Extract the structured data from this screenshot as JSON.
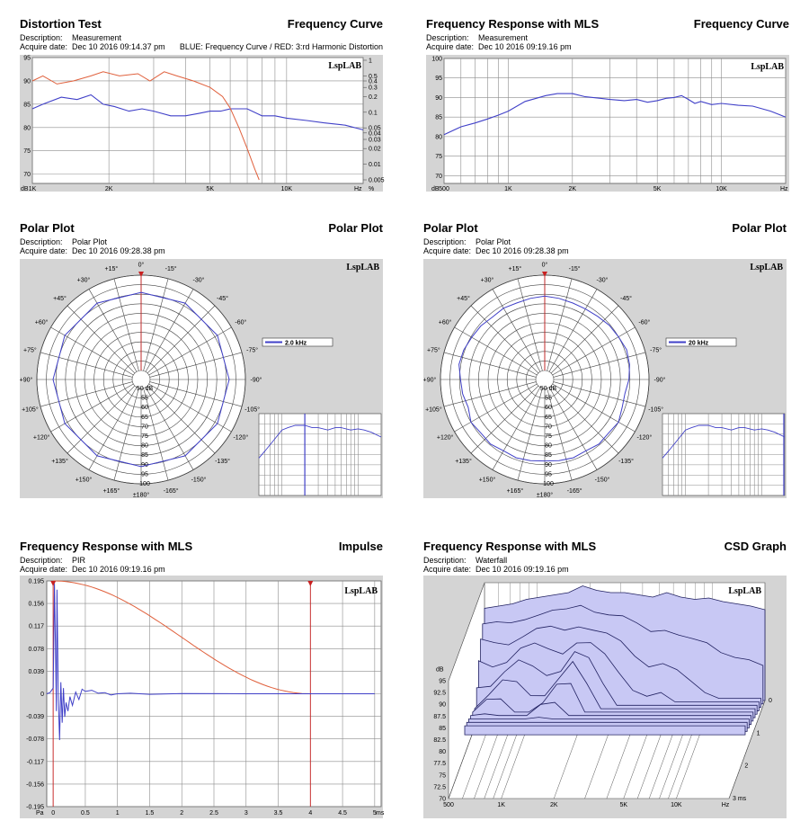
{
  "panels": [
    {
      "title": "Distortion Test",
      "right_title": "Frequency Curve",
      "desc_label": "Description:",
      "desc": "Measurement",
      "date_label": "Acquire date:",
      "date": "Dec 10 2016  09:14.37 pm",
      "note": "BLUE: Frequency Curve / RED: 3:rd Harmonic Distortion"
    },
    {
      "title": "Frequency Response with MLS",
      "right_title": "Frequency Curve",
      "desc_label": "Description:",
      "desc": "Measurement",
      "date_label": "Acquire date:",
      "date": "Dec 10 2016  09:19.16 pm"
    },
    {
      "title": "Polar Plot",
      "right_title": "Polar Plot",
      "desc_label": "Description:",
      "desc": "Polar Plot",
      "date_label": "Acquire date:",
      "date": "Dec 10 2016  09:28.38 pm"
    },
    {
      "title": "Polar Plot",
      "right_title": "Polar Plot",
      "desc_label": "Description:",
      "desc": "Polar Plot",
      "date_label": "Acquire date:",
      "date": "Dec 10 2016  09:28.38 pm"
    },
    {
      "title": "Frequency Response with MLS",
      "right_title": "Impulse",
      "desc_label": "Description:",
      "desc": "PIR",
      "date_label": "Acquire date:",
      "date": "Dec 10 2016  09:19.16 pm"
    },
    {
      "title": "Frequency Response with MLS",
      "right_title": "CSD Graph",
      "desc_label": "Description:",
      "desc": "Waterfall",
      "date_label": "Acquire date:",
      "date": "Dec 10 2016  09:19.16 pm"
    }
  ],
  "watermark": "LspLAB",
  "colors": {
    "plot_bg": "#d4d4d4",
    "grid": "#8c8c8c",
    "blue": "#4040c8",
    "red": "#e0603c",
    "marker": "#c82020",
    "csd_fill": "#c8c8f4"
  },
  "chart_data": [
    {
      "type": "line",
      "id": "distortion",
      "xscale": "log",
      "xlim": [
        1000,
        20000
      ],
      "x_ticks": [
        "1K",
        "2K",
        "5K",
        "10K",
        "Hz"
      ],
      "ylabel": "dB",
      "ylim": [
        68,
        95
      ],
      "y_ticks": [
        "95",
        "90",
        "85",
        "80",
        "75",
        "70"
      ],
      "y2_ticks": [
        "1",
        "0.5",
        "0.4",
        "0.3",
        "0.2",
        "0.1",
        "0.05",
        "0.04",
        "0.03",
        "0.02",
        "0.01",
        "0.005"
      ],
      "y2_unit": "%",
      "series": [
        {
          "name": "Frequency Curve",
          "color": "blue",
          "x": [
            1000,
            1100,
            1300,
            1500,
            1700,
            1900,
            2100,
            2400,
            2700,
            3000,
            3500,
            4000,
            4500,
            5000,
            5500,
            6000,
            7000,
            8000,
            9000,
            10000,
            12000,
            14000,
            17000,
            20000
          ],
          "y": [
            84,
            85,
            86.5,
            86,
            87,
            85,
            84.5,
            83.5,
            84,
            83.5,
            82.5,
            82.5,
            83,
            83.5,
            83.5,
            84,
            84,
            82.5,
            82.5,
            82,
            81.5,
            81,
            80.5,
            79.5
          ]
        },
        {
          "name": "3:rd Harmonic Distortion",
          "color": "red",
          "axis": "right",
          "x": [
            1000,
            1100,
            1250,
            1450,
            1700,
            1900,
            2200,
            2600,
            2900,
            3300,
            3700,
            4300,
            5000,
            5600,
            6000,
            6500,
            7000,
            7500,
            7800
          ],
          "y": [
            0.4,
            0.5,
            0.35,
            0.4,
            0.5,
            0.6,
            0.5,
            0.55,
            0.4,
            0.6,
            0.5,
            0.4,
            0.3,
            0.2,
            0.12,
            0.05,
            0.02,
            0.008,
            0.005
          ]
        }
      ]
    },
    {
      "type": "line",
      "id": "mls",
      "xscale": "log",
      "xlim": [
        500,
        20000
      ],
      "x_ticks": [
        "500",
        "1K",
        "2K",
        "5K",
        "10K",
        "Hz"
      ],
      "ylabel": "dB",
      "ylim": [
        68,
        100
      ],
      "y_ticks": [
        "100",
        "95",
        "90",
        "85",
        "80",
        "75",
        "70"
      ],
      "series": [
        {
          "name": "Frequency Curve",
          "color": "blue",
          "x": [
            500,
            600,
            700,
            800,
            900,
            1000,
            1200,
            1500,
            1700,
            2000,
            2300,
            2700,
            3000,
            3500,
            4000,
            4500,
            5000,
            5500,
            6000,
            6500,
            7000,
            7500,
            8000,
            9000,
            10000,
            12000,
            14000,
            17000,
            20000
          ],
          "y": [
            80.5,
            82.5,
            83.5,
            84.5,
            85.5,
            86.5,
            89,
            90.5,
            91,
            91,
            90.2,
            89.8,
            89.5,
            89.2,
            89.5,
            88.8,
            89.2,
            89.8,
            90,
            90.5,
            89.5,
            88.5,
            89,
            88.2,
            88.5,
            88,
            87.8,
            86.5,
            85
          ]
        }
      ]
    },
    {
      "type": "polar",
      "id": "polar1",
      "rings": [
        "50",
        "55",
        "60",
        "65",
        "70",
        "75",
        "80",
        "85",
        "90",
        "95",
        "100"
      ],
      "ring_unit": "dB",
      "angle_labels": [
        "0°",
        "-15°",
        "-30°",
        "-45°",
        "-60°",
        "-75°",
        "-90°",
        "-105°",
        "-120°",
        "-135°",
        "-150°",
        "-165°",
        "±180°",
        "+165°",
        "+150°",
        "+135°",
        "+120°",
        "+105°",
        "+90°",
        "+75°",
        "+60°",
        "+45°",
        "+30°",
        "+15°"
      ],
      "legend": "2.0 kHz",
      "series": [
        {
          "angle_deg": [
            0,
            30,
            60,
            90,
            120,
            150,
            180,
            210,
            240,
            270,
            300,
            330,
            360
          ],
          "db": [
            91,
            91.5,
            91.5,
            91.5,
            91.5,
            91.5,
            91,
            91.5,
            91.5,
            91.5,
            91.5,
            91.5,
            91
          ]
        }
      ],
      "inset": {
        "type": "line",
        "xscale": "log",
        "xlim": [
          500,
          20000
        ],
        "ylim": [
          60,
          95
        ],
        "x": [
          500,
          600,
          800,
          1000,
          1200,
          1500,
          2000,
          2500,
          3000,
          4000,
          5000,
          6000,
          8000,
          10000,
          12000,
          15000,
          20000
        ],
        "y": [
          76,
          79,
          84,
          88,
          89,
          90,
          90,
          89,
          89,
          88,
          89,
          89,
          88,
          88.5,
          88,
          87,
          85
        ],
        "marker_x": 2000
      }
    },
    {
      "type": "polar",
      "id": "polar2",
      "rings": [
        "50",
        "55",
        "60",
        "65",
        "70",
        "75",
        "80",
        "85",
        "90",
        "95",
        "100"
      ],
      "ring_unit": "dB",
      "angle_labels": [
        "0°",
        "-15°",
        "-30°",
        "-45°",
        "-60°",
        "-75°",
        "-90°",
        "-105°",
        "-120°",
        "-135°",
        "-150°",
        "-165°",
        "±180°",
        "+165°",
        "+150°",
        "+135°",
        "+120°",
        "+105°",
        "+90°",
        "+75°",
        "+60°",
        "+45°",
        "+30°",
        "+15°"
      ],
      "legend": "20 kHz",
      "series": [
        {
          "angle_deg": [
            0,
            10,
            20,
            30,
            40,
            50,
            60,
            70,
            80,
            90,
            100,
            110,
            120,
            130,
            140,
            150,
            160,
            170,
            180,
            190,
            200,
            210,
            220,
            230,
            240,
            250,
            260,
            270,
            280,
            290,
            300,
            310,
            320,
            330,
            340,
            350,
            360
          ],
          "db": [
            89,
            88.5,
            88,
            88,
            88.5,
            89.5,
            90,
            91,
            90.5,
            89.5,
            88,
            88.5,
            90,
            89,
            89.5,
            88.5,
            89,
            88.5,
            88,
            88.5,
            89,
            88.5,
            89.5,
            89,
            90,
            88,
            89,
            89.5,
            91,
            90.5,
            89.5,
            89,
            88,
            88.5,
            88,
            88.5,
            89
          ]
        }
      ],
      "inset": {
        "type": "line",
        "xscale": "log",
        "xlim": [
          500,
          20000
        ],
        "ylim": [
          60,
          95
        ],
        "x": [
          500,
          600,
          800,
          1000,
          1200,
          1500,
          2000,
          2500,
          3000,
          4000,
          5000,
          6000,
          8000,
          10000,
          12000,
          15000,
          20000
        ],
        "y": [
          76,
          79,
          84,
          88,
          89,
          90,
          90,
          89,
          89,
          88,
          89,
          89,
          88,
          88.5,
          88,
          87,
          85
        ],
        "marker_x": 20000
      }
    },
    {
      "type": "line",
      "id": "impulse",
      "xlim": [
        -0.1,
        5.1
      ],
      "x_ticks": [
        "0",
        "0.5",
        "1",
        "1.5",
        "2",
        "2.5",
        "3",
        "3.5",
        "4",
        "4.5",
        "5"
      ],
      "x_unit": "ms",
      "ylim": [
        -0.195,
        0.195
      ],
      "y_ticks": [
        "0.195",
        "0.156",
        "0.117",
        "0.078",
        "0.039",
        "0",
        "-0.039",
        "-0.078",
        "-0.117",
        "-0.156",
        "-0.195"
      ],
      "ylabel": "Pa",
      "series": [
        {
          "name": "Impulse",
          "color": "blue",
          "x": [
            -0.1,
            -0.05,
            0,
            0.02,
            0.04,
            0.05,
            0.06,
            0.08,
            0.1,
            0.12,
            0.14,
            0.16,
            0.18,
            0.2,
            0.23,
            0.26,
            0.3,
            0.35,
            0.4,
            0.45,
            0.5,
            0.6,
            0.7,
            0.8,
            0.9,
            1.0,
            1.2,
            1.5,
            2,
            3,
            4,
            5
          ],
          "y": [
            0,
            0.002,
            0.01,
            0.19,
            0.05,
            -0.03,
            0.18,
            -0.01,
            -0.08,
            0.02,
            -0.05,
            0.01,
            -0.04,
            -0.015,
            -0.03,
            -0.005,
            -0.02,
            0.003,
            -0.01,
            0.008,
            0.004,
            0.006,
            0.001,
            0.002,
            -0.002,
            0,
            0.001,
            -0.001,
            0.0005,
            0,
            0,
            0
          ]
        },
        {
          "name": "Window",
          "color": "red",
          "x": [
            0,
            4
          ],
          "shape": "half-cosine",
          "peak": 0.195
        }
      ],
      "markers_x": [
        0,
        4
      ]
    },
    {
      "type": "waterfall",
      "id": "csd",
      "xscale": "log",
      "xlim": [
        500,
        20000
      ],
      "x_ticks": [
        "500",
        "1K",
        "2K",
        "5K",
        "10K",
        "Hz"
      ],
      "ylabel": "dB",
      "ylim": [
        70,
        97.5
      ],
      "y_ticks": [
        "95",
        "92.5",
        "90",
        "87.5",
        "85",
        "82.5",
        "80",
        "77.5",
        "75",
        "72.5",
        "70"
      ],
      "time_ticks": [
        "0",
        "1",
        "2",
        "3 ms"
      ],
      "slices": 11
    }
  ]
}
